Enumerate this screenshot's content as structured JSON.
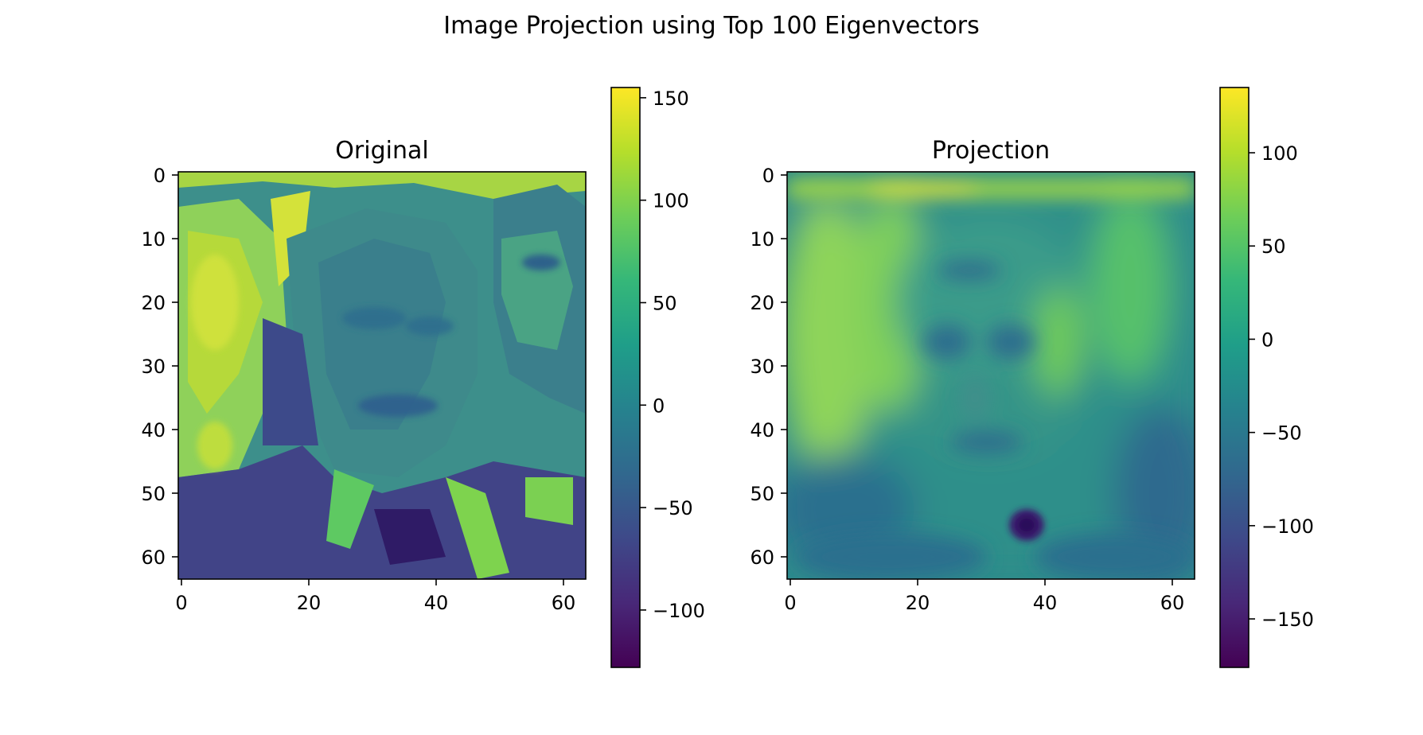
{
  "figure": {
    "title": "Image Projection using Top 100 Eigenvectors",
    "colormap": "viridis",
    "colormap_stops": [
      "#440154",
      "#482878",
      "#3e4989",
      "#31688e",
      "#26828e",
      "#1f9e89",
      "#35b779",
      "#6ece58",
      "#b5de2b",
      "#fde725"
    ],
    "axis_color": "#000000",
    "background": "#ffffff"
  },
  "chart_data": [
    {
      "type": "heatmap",
      "title": "Original",
      "image_size": [
        64,
        64
      ],
      "xticks": [
        0,
        20,
        40,
        60
      ],
      "yticks": [
        0,
        10,
        20,
        30,
        40,
        50,
        60
      ],
      "xlim": [
        -0.5,
        63.5
      ],
      "ylim": [
        63.5,
        -0.5
      ],
      "colorbar": {
        "vmin": -128,
        "vmax": 155,
        "ticks": [
          -100,
          -50,
          0,
          50,
          100,
          150
        ],
        "tick_labels": [
          "−100",
          "−50",
          "0",
          "50",
          "100",
          "150"
        ]
      },
      "content": "grayscale face photograph with bright background figures at left and right"
    },
    {
      "type": "heatmap",
      "title": "Projection",
      "image_size": [
        64,
        64
      ],
      "xticks": [
        0,
        20,
        40,
        60
      ],
      "yticks": [
        0,
        10,
        20,
        30,
        40,
        50,
        60
      ],
      "xlim": [
        -0.5,
        63.5
      ],
      "ylim": [
        63.5,
        -0.5
      ],
      "colorbar": {
        "vmin": -176,
        "vmax": 135,
        "ticks": [
          -150,
          -100,
          -50,
          0,
          50,
          100
        ],
        "tick_labels": [
          "−150",
          "−100",
          "−50",
          "0",
          "50",
          "100"
        ]
      },
      "content": "smooth eigenface reconstruction of the face"
    }
  ]
}
